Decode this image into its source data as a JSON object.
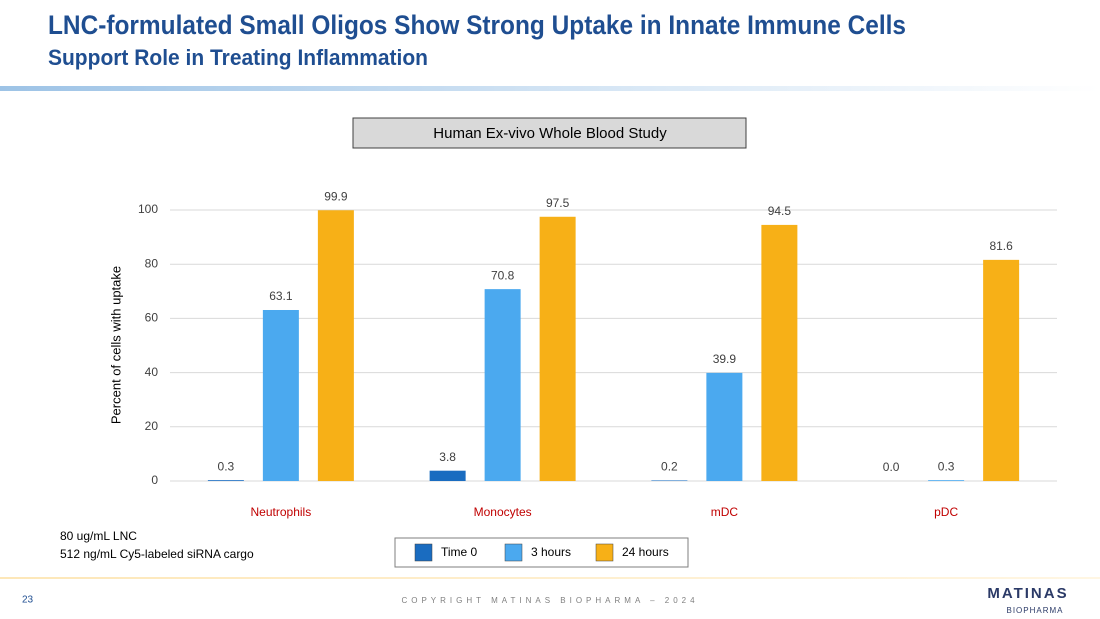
{
  "slide": {
    "title": "LNC-formulated Small Oligos Show Strong Uptake in Innate Immune Cells",
    "subtitle": "Support Role in Treating Inflammation",
    "study_box": "Human Ex-vivo Whole Blood Study",
    "notes": [
      "80 ug/mL LNC",
      "512 ng/mL Cy5-labeled siRNA cargo"
    ],
    "page_number": "23",
    "footer": "COPYRIGHT MATINAS BIOPHARMA – 2024",
    "logo": {
      "name": "MATINAS",
      "tagline": "BIOPHARMA"
    }
  },
  "chart_data": {
    "type": "bar",
    "y_label": "Percent of cells with uptake",
    "categories": [
      "Neutrophils",
      "Monocytes",
      "mDC",
      "pDC"
    ],
    "category_color": "#c00000",
    "series": [
      {
        "name": "Time 0",
        "color": "#1a6cc0",
        "values": [
          0.3,
          3.8,
          0.2,
          0
        ],
        "value_labels": [
          "0.3",
          "3.8",
          "0.2",
          "0.0"
        ]
      },
      {
        "name": "3 hours",
        "color": "#4ba9ef",
        "values": [
          63.1,
          70.8,
          39.9,
          0.3
        ],
        "value_labels": [
          "63.1",
          "70.8",
          "39.9",
          "0.3"
        ]
      },
      {
        "name": "24 hours",
        "color": "#f7b017",
        "values": [
          99.9,
          97.5,
          94.5,
          81.6
        ],
        "value_labels": [
          "99.9",
          "97.5",
          "94.5",
          "81.6"
        ]
      }
    ],
    "ylim": [
      0,
      100
    ],
    "yticks": [
      0,
      20,
      40,
      60,
      80,
      100
    ],
    "grid": true,
    "legend": "bottom"
  }
}
